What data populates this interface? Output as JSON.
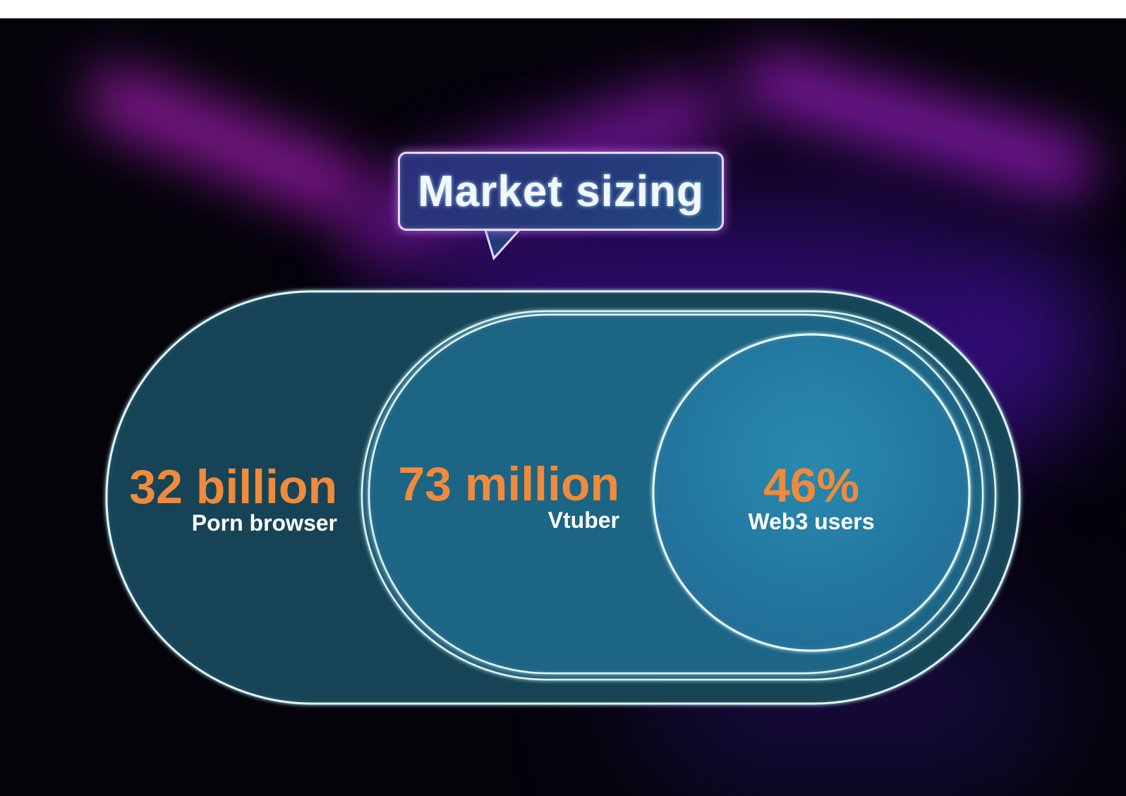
{
  "title": "Market sizing",
  "metrics": [
    {
      "value": "32 billion",
      "label": "Porn browser"
    },
    {
      "value": "73 million",
      "label": "Vtuber"
    },
    {
      "value": "46%",
      "label": "Web3 users"
    }
  ],
  "colors": {
    "background": "#04030a",
    "accent_number": "#f08a3c",
    "outline": "#cff6f6",
    "neon_glow": "#a020c8"
  }
}
